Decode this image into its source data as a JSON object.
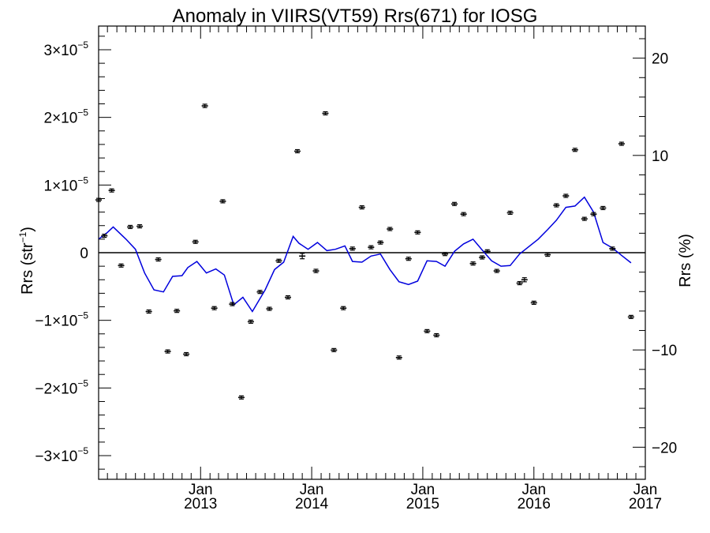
{
  "chart_data": {
    "type": "scatter",
    "title": "Anomaly in VIIRS(VT59) Rrs(671) for IOSG",
    "ylabel_left": {
      "base": "Rrs (str",
      "sup": "−1",
      "tail": ")"
    },
    "ylabel_right": "Rrs (%)",
    "xlabel": "",
    "xlim": [
      "2012-02-01",
      "2017-01-01"
    ],
    "ylim_left": [
      -3.35e-05,
      3.35e-05
    ],
    "ylim_right": [
      -23.3,
      23.3
    ],
    "x_ticks": [
      {
        "date": "2013-01-01",
        "month": "Jan",
        "year": "2013"
      },
      {
        "date": "2014-01-01",
        "month": "Jan",
        "year": "2014"
      },
      {
        "date": "2015-01-01",
        "month": "Jan",
        "year": "2015"
      },
      {
        "date": "2016-01-01",
        "month": "Jan",
        "year": "2016"
      },
      {
        "date": "2017-01-01",
        "month": "Jan",
        "year": "2017"
      }
    ],
    "y_ticks_left": [
      {
        "value": 3e-05,
        "mant": "3",
        "exp": "−5",
        "zero": false,
        "label": "3×10−5"
      },
      {
        "value": 2e-05,
        "mant": "2",
        "exp": "−5",
        "zero": false,
        "label": "2×10−5"
      },
      {
        "value": 1e-05,
        "mant": "1",
        "exp": "−5",
        "zero": false,
        "label": "1×10−5"
      },
      {
        "value": 0,
        "mant": "0",
        "exp": "",
        "zero": true,
        "label": "0"
      },
      {
        "value": -1e-05,
        "mant": "−1",
        "exp": "−5",
        "zero": false,
        "label": "−1×10−5"
      },
      {
        "value": -2e-05,
        "mant": "−2",
        "exp": "−5",
        "zero": false,
        "label": "−2×10−5"
      },
      {
        "value": -3e-05,
        "mant": "−3",
        "exp": "−5",
        "zero": false,
        "label": "−3×10−5"
      }
    ],
    "y_ticks_right": [
      {
        "value": 20,
        "label": "20"
      },
      {
        "value": 10,
        "label": "10"
      },
      {
        "value": -10,
        "label": "−10"
      },
      {
        "value": -20,
        "label": "−20"
      }
    ],
    "zero_line": 0,
    "colors": {
      "points": "#000000",
      "line": "#0000dd",
      "axes": "#000000"
    },
    "series": [
      {
        "kind": "points",
        "points": [
          {
            "x": "2012-02-01",
            "y": 7.8e-06,
            "err": 1e-07
          },
          {
            "x": "2012-02-20",
            "y": 2.5e-06,
            "err": 1.5e-07
          },
          {
            "x": "2012-03-15",
            "y": 9.2e-06,
            "err": 1.5e-07
          },
          {
            "x": "2012-04-15",
            "y": -1.9e-06,
            "err": 1e-07
          },
          {
            "x": "2012-05-15",
            "y": 3.8e-06,
            "err": 1.5e-07
          },
          {
            "x": "2012-06-15",
            "y": 3.9e-06,
            "err": 1.5e-07
          },
          {
            "x": "2012-07-15",
            "y": -8.7e-06,
            "err": 1e-07
          },
          {
            "x": "2012-08-15",
            "y": -1e-06,
            "err": 1.5e-07
          },
          {
            "x": "2012-09-15",
            "y": -1.46e-05,
            "err": 1e-07
          },
          {
            "x": "2012-10-15",
            "y": -8.6e-06,
            "err": 1.5e-07
          },
          {
            "x": "2012-11-15",
            "y": -1.5e-05,
            "err": 1e-07
          },
          {
            "x": "2012-12-15",
            "y": 1.6e-06,
            "err": 2e-07
          },
          {
            "x": "2013-01-15",
            "y": 2.17e-05,
            "err": 2.5e-07
          },
          {
            "x": "2013-02-15",
            "y": -8.2e-06,
            "err": 1.5e-07
          },
          {
            "x": "2013-03-15",
            "y": 7.6e-06,
            "err": 2e-07
          },
          {
            "x": "2013-04-15",
            "y": -7.6e-06,
            "err": 1e-07
          },
          {
            "x": "2013-05-15",
            "y": -2.14e-05,
            "err": 5e-08
          },
          {
            "x": "2013-06-15",
            "y": -1.02e-05,
            "err": 1e-07
          },
          {
            "x": "2013-07-15",
            "y": -5.8e-06,
            "err": 1e-07
          },
          {
            "x": "2013-08-15",
            "y": -8.3e-06,
            "err": 1.5e-07
          },
          {
            "x": "2013-09-15",
            "y": -1.2e-06,
            "err": 1.5e-07
          },
          {
            "x": "2013-10-15",
            "y": -6.6e-06,
            "err": 1e-07
          },
          {
            "x": "2013-11-15",
            "y": 1.5e-05,
            "err": 2e-07
          },
          {
            "x": "2013-12-01",
            "y": -5e-07,
            "err": 4e-07
          },
          {
            "x": "2014-01-15",
            "y": -2.7e-06,
            "err": 2.5e-07
          },
          {
            "x": "2014-02-15",
            "y": 2.06e-05,
            "err": 2e-07
          },
          {
            "x": "2014-03-15",
            "y": -1.44e-05,
            "err": 1.5e-07
          },
          {
            "x": "2014-04-15",
            "y": -8.2e-06,
            "err": 1e-07
          },
          {
            "x": "2014-05-15",
            "y": 6e-07,
            "err": 1.5e-07
          },
          {
            "x": "2014-06-15",
            "y": 6.7e-06,
            "err": 1.5e-07
          },
          {
            "x": "2014-07-15",
            "y": 8e-07,
            "err": 1.5e-07
          },
          {
            "x": "2014-08-15",
            "y": 1.5e-06,
            "err": 1.5e-07
          },
          {
            "x": "2014-09-15",
            "y": 3.5e-06,
            "err": 2e-07
          },
          {
            "x": "2014-10-15",
            "y": -1.55e-05,
            "err": 1e-07
          },
          {
            "x": "2014-11-15",
            "y": -9e-07,
            "err": 2e-07
          },
          {
            "x": "2014-12-15",
            "y": 3e-06,
            "err": 2e-07
          },
          {
            "x": "2015-01-15",
            "y": -1.16e-05,
            "err": 1.5e-07
          },
          {
            "x": "2015-02-15",
            "y": -1.22e-05,
            "err": 1.5e-07
          },
          {
            "x": "2015-03-15",
            "y": -2e-07,
            "err": 1.5e-07
          },
          {
            "x": "2015-04-15",
            "y": 7.2e-06,
            "err": 1e-07
          },
          {
            "x": "2015-05-15",
            "y": 5.7e-06,
            "err": 1.5e-07
          },
          {
            "x": "2015-06-15",
            "y": -1.6e-06,
            "err": 1e-07
          },
          {
            "x": "2015-07-15",
            "y": -7e-07,
            "err": 1.5e-07
          },
          {
            "x": "2015-08-01",
            "y": 2e-07,
            "err": 1.5e-07
          },
          {
            "x": "2015-09-01",
            "y": -2.7e-06,
            "err": 1e-07
          },
          {
            "x": "2015-10-15",
            "y": 5.9e-06,
            "err": 2e-07
          },
          {
            "x": "2015-11-15",
            "y": -4.5e-06,
            "err": 1.5e-07
          },
          {
            "x": "2015-12-01",
            "y": -4e-06,
            "err": 3e-07
          },
          {
            "x": "2016-01-01",
            "y": -7.4e-06,
            "err": 2e-07
          },
          {
            "x": "2016-02-15",
            "y": -3e-07,
            "err": 1.5e-07
          },
          {
            "x": "2016-03-15",
            "y": 7e-06,
            "err": 1.5e-07
          },
          {
            "x": "2016-04-15",
            "y": 8.4e-06,
            "err": 1.5e-07
          },
          {
            "x": "2016-05-15",
            "y": 1.52e-05,
            "err": 1.5e-07
          },
          {
            "x": "2016-06-15",
            "y": 5e-06,
            "err": 1.5e-07
          },
          {
            "x": "2016-07-15",
            "y": 5.7e-06,
            "err": 1.5e-07
          },
          {
            "x": "2016-08-15",
            "y": 6.6e-06,
            "err": 1.5e-07
          },
          {
            "x": "2016-09-15",
            "y": 6e-07,
            "err": 1.5e-07
          },
          {
            "x": "2016-10-15",
            "y": 1.61e-05,
            "err": 1.5e-07
          },
          {
            "x": "2016-11-15",
            "y": -9.5e-06,
            "err": 2e-07
          }
        ]
      },
      {
        "kind": "line",
        "points": [
          {
            "x": "2012-02-01",
            "y": 2e-06
          },
          {
            "x": "2012-03-01",
            "y": 3e-06
          },
          {
            "x": "2012-03-20",
            "y": 3.8e-06
          },
          {
            "x": "2012-05-01",
            "y": 2e-06
          },
          {
            "x": "2012-06-01",
            "y": 5e-07
          },
          {
            "x": "2012-07-01",
            "y": -3e-06
          },
          {
            "x": "2012-08-01",
            "y": -5.5e-06
          },
          {
            "x": "2012-09-01",
            "y": -5.8e-06
          },
          {
            "x": "2012-10-01",
            "y": -3.5e-06
          },
          {
            "x": "2012-11-01",
            "y": -3.4e-06
          },
          {
            "x": "2012-11-20",
            "y": -2.2e-06
          },
          {
            "x": "2012-12-20",
            "y": -1.3e-06
          },
          {
            "x": "2013-01-20",
            "y": -3e-06
          },
          {
            "x": "2013-02-20",
            "y": -2.4e-06
          },
          {
            "x": "2013-03-20",
            "y": -3.3e-06
          },
          {
            "x": "2013-04-20",
            "y": -7.7e-06
          },
          {
            "x": "2013-05-20",
            "y": -6.6e-06
          },
          {
            "x": "2013-06-20",
            "y": -8.7e-06
          },
          {
            "x": "2013-08-01",
            "y": -5.5e-06
          },
          {
            "x": "2013-09-01",
            "y": -2.5e-06
          },
          {
            "x": "2013-10-01",
            "y": -1.4e-06
          },
          {
            "x": "2013-11-01",
            "y": 2.4e-06
          },
          {
            "x": "2013-11-20",
            "y": 1.4e-06
          },
          {
            "x": "2013-12-20",
            "y": 5e-07
          },
          {
            "x": "2014-01-20",
            "y": 1.5e-06
          },
          {
            "x": "2014-02-20",
            "y": 3e-07
          },
          {
            "x": "2014-03-20",
            "y": 5e-07
          },
          {
            "x": "2014-04-20",
            "y": 1e-06
          },
          {
            "x": "2014-05-15",
            "y": -1.3e-06
          },
          {
            "x": "2014-06-15",
            "y": -1.4e-06
          },
          {
            "x": "2014-07-15",
            "y": -5e-07
          },
          {
            "x": "2014-08-15",
            "y": -2e-07
          },
          {
            "x": "2014-09-15",
            "y": -2.5e-06
          },
          {
            "x": "2014-10-15",
            "y": -4.3e-06
          },
          {
            "x": "2014-11-15",
            "y": -4.7e-06
          },
          {
            "x": "2014-12-15",
            "y": -4.2e-06
          },
          {
            "x": "2015-01-15",
            "y": -1.2e-06
          },
          {
            "x": "2015-02-15",
            "y": -1.3e-06
          },
          {
            "x": "2015-03-15",
            "y": -2e-06
          },
          {
            "x": "2015-04-15",
            "y": 2e-07
          },
          {
            "x": "2015-05-15",
            "y": 1.3e-06
          },
          {
            "x": "2015-06-15",
            "y": 2e-06
          },
          {
            "x": "2015-07-15",
            "y": 4e-07
          },
          {
            "x": "2015-08-15",
            "y": -1.2e-06
          },
          {
            "x": "2015-09-15",
            "y": -2e-06
          },
          {
            "x": "2015-10-15",
            "y": -1.9e-06
          },
          {
            "x": "2015-11-15",
            "y": -2e-07
          },
          {
            "x": "2016-01-15",
            "y": 2e-06
          },
          {
            "x": "2016-02-15",
            "y": 3.4e-06
          },
          {
            "x": "2016-03-15",
            "y": 4.8e-06
          },
          {
            "x": "2016-04-15",
            "y": 6.7e-06
          },
          {
            "x": "2016-05-15",
            "y": 6.9e-06
          },
          {
            "x": "2016-06-15",
            "y": 8.2e-06
          },
          {
            "x": "2016-07-15",
            "y": 6e-06
          },
          {
            "x": "2016-08-15",
            "y": 1.5e-06
          },
          {
            "x": "2016-09-15",
            "y": 7e-07
          },
          {
            "x": "2016-10-15",
            "y": -4e-07
          },
          {
            "x": "2016-11-15",
            "y": -1.5e-06
          }
        ]
      }
    ]
  }
}
